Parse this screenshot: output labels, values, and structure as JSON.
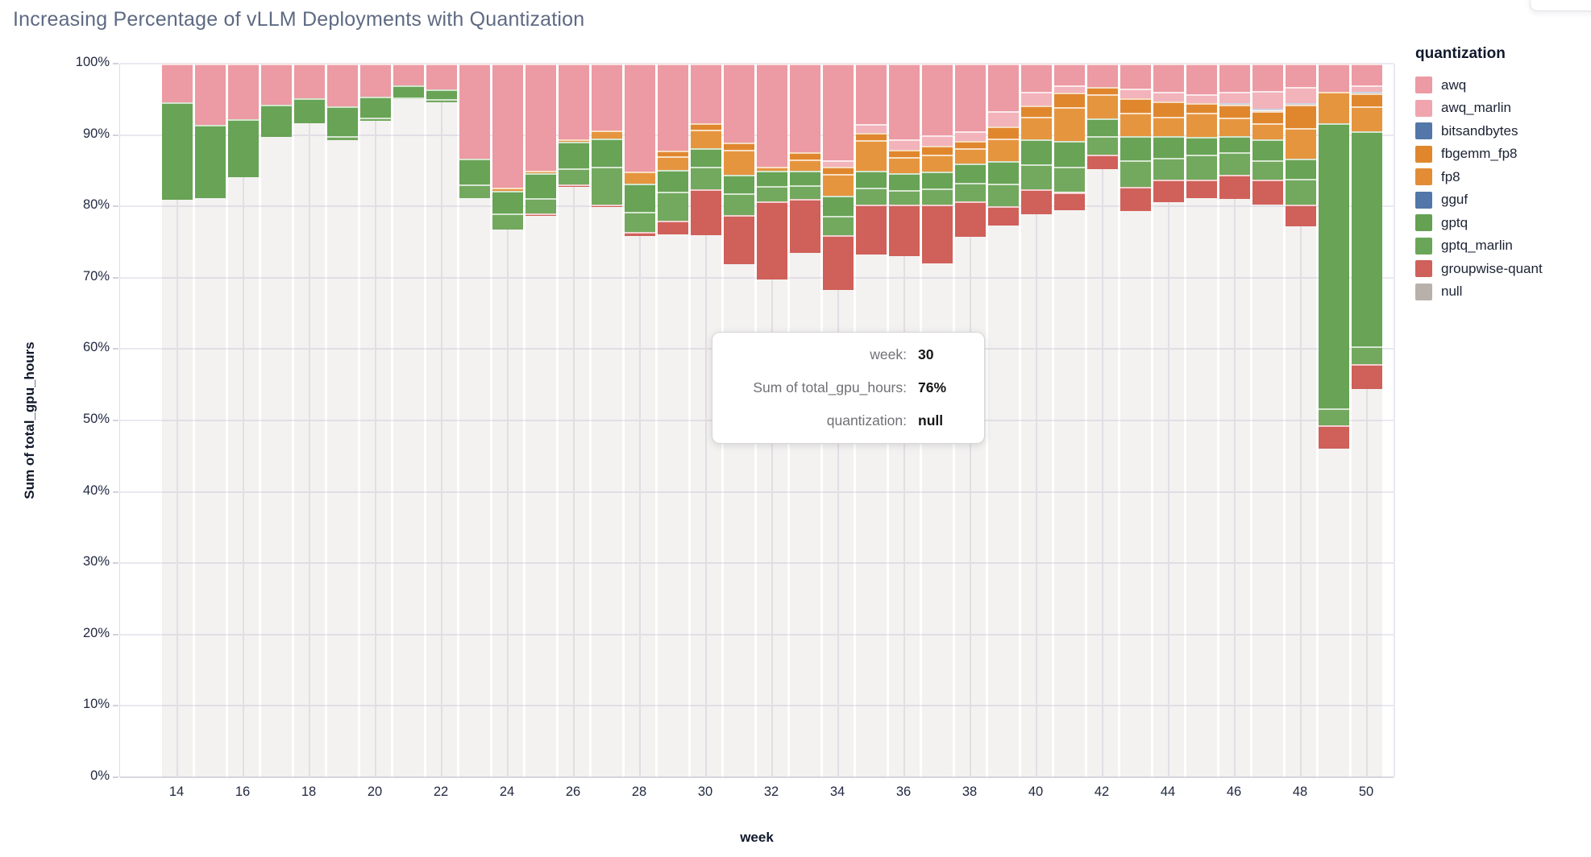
{
  "header": {
    "title": "Increasing Percentage of vLLM Deployments with Quantization"
  },
  "chart_data": {
    "type": "bar",
    "stacked": true,
    "normalized_percent": true,
    "title": "Increasing Percentage of vLLM Deployments with Quantization",
    "xlabel": "week",
    "ylabel": "Sum of total_gpu_hours",
    "legend_title": "quantization",
    "grid": true,
    "legend_position": "right",
    "ylim": [
      0,
      100
    ],
    "y_ticks": [
      0,
      10,
      20,
      30,
      40,
      50,
      60,
      70,
      80,
      90,
      100
    ],
    "y_tick_suffix": "%",
    "x_tick_labels": [
      14,
      16,
      18,
      20,
      22,
      24,
      26,
      28,
      30,
      32,
      34,
      36,
      38,
      40,
      42,
      44,
      46,
      48,
      50
    ],
    "categories": [
      14,
      15,
      16,
      17,
      18,
      19,
      20,
      21,
      22,
      23,
      24,
      25,
      26,
      27,
      28,
      29,
      30,
      31,
      32,
      33,
      34,
      35,
      36,
      37,
      38,
      39,
      40,
      41,
      42,
      43,
      44,
      45,
      46,
      47,
      48,
      49,
      50
    ],
    "series": [
      {
        "name": "awq",
        "color": "#ec9aa3",
        "values": [
          5.4,
          8.6,
          7.8,
          5.8,
          4.8,
          6.0,
          4.6,
          3.1,
          3.6,
          13.3,
          17.4,
          15.0,
          10.6,
          9.4,
          15.1,
          12.2,
          8.4,
          11.1,
          14.4,
          12.4,
          13.5,
          8.5,
          10.6,
          10.0,
          9.5,
          6.7,
          4.0,
          3.0,
          3.3,
          3.5,
          4.0,
          4.3,
          4.0,
          3.8,
          3.3,
          3.9,
          3.0
        ]
      },
      {
        "name": "awq_marlin",
        "color": "#f2b3bb",
        "values": [
          0,
          0,
          0,
          0,
          0,
          0,
          0,
          0,
          0,
          0,
          0,
          0,
          0,
          0,
          0,
          0,
          0,
          0,
          0,
          0,
          1.0,
          1.2,
          1.5,
          1.5,
          1.3,
          2.1,
          1.9,
          1.1,
          0,
          1.3,
          1.3,
          1.2,
          1.5,
          2.5,
          2.2,
          0,
          0.9
        ]
      },
      {
        "name": "bitsandbytes",
        "color": "#5277a8",
        "values": [
          0,
          0,
          0,
          0,
          0,
          0,
          0,
          0,
          0,
          0,
          0,
          0,
          0,
          0,
          0,
          0,
          0,
          0,
          0,
          0,
          0,
          0,
          0,
          0,
          0,
          0,
          0,
          0,
          0,
          0,
          0,
          0,
          0.3,
          0.3,
          0.3,
          0,
          0.3
        ]
      },
      {
        "name": "fbgemm_fp8",
        "color": "#e0872e",
        "values": [
          0,
          0,
          0,
          0,
          0,
          0,
          0,
          0,
          0,
          0,
          0,
          0,
          0,
          0,
          0,
          0.8,
          0.9,
          1.0,
          0,
          1.0,
          1.0,
          1.0,
          1.0,
          1.2,
          1.0,
          1.7,
          1.5,
          2.0,
          1.0,
          2.1,
          2.2,
          1.4,
          1.8,
          1.7,
          3.2,
          0,
          1.8
        ]
      },
      {
        "name": "fp8",
        "color": "#e6953f",
        "values": [
          0,
          0,
          0,
          0,
          0,
          0,
          0,
          0,
          0,
          0,
          0.4,
          0.4,
          0.4,
          1.1,
          1.7,
          1.9,
          2.5,
          3.5,
          0.6,
          1.6,
          3.0,
          4.3,
          2.2,
          2.4,
          2.2,
          3.2,
          3.2,
          4.7,
          3.4,
          3.2,
          2.7,
          3.4,
          2.6,
          2.3,
          4.3,
          4.4,
          3.5
        ]
      },
      {
        "name": "gguf",
        "color": "#5277a8",
        "values": [
          0,
          0,
          0,
          0,
          0,
          0,
          0,
          0,
          0,
          0,
          0,
          0,
          0,
          0,
          0,
          0,
          0,
          0,
          0,
          0,
          0,
          0,
          0,
          0,
          0,
          0,
          0,
          0,
          0,
          0,
          0,
          0,
          0,
          0,
          0,
          0,
          0
        ]
      },
      {
        "name": "gptq",
        "color": "#68a356",
        "values": [
          13.7,
          10.3,
          8.1,
          4.5,
          3.6,
          4.2,
          3.0,
          1.6,
          1.4,
          3.6,
          3.2,
          3.4,
          3.7,
          3.9,
          4.0,
          3.1,
          2.7,
          2.6,
          2.1,
          2.0,
          2.8,
          2.4,
          2.4,
          2.4,
          2.7,
          3.1,
          3.5,
          3.6,
          2.5,
          3.4,
          3.0,
          2.5,
          2.2,
          2.9,
          2.8,
          40.0,
          30.1
        ]
      },
      {
        "name": "gptq_marlin",
        "color": "#72a95e",
        "values": [
          0,
          0,
          0,
          0,
          0,
          0.5,
          0.4,
          0.3,
          0.4,
          2.0,
          2.3,
          2.2,
          2.2,
          5.4,
          2.8,
          4.0,
          3.1,
          3.0,
          2.2,
          2.0,
          2.7,
          2.3,
          2.1,
          2.3,
          2.6,
          3.2,
          3.5,
          3.6,
          2.6,
          3.8,
          3.0,
          3.5,
          3.2,
          2.8,
          3.7,
          2.4,
          2.5
        ]
      },
      {
        "name": "groupwise-quant",
        "color": "#d0605a",
        "values": [
          0,
          0,
          0,
          0,
          0,
          0,
          0,
          0,
          0,
          0,
          0,
          0.3,
          0.4,
          0.3,
          0.5,
          1.9,
          6.4,
          6.9,
          11.0,
          7.5,
          7.7,
          7.1,
          7.2,
          8.2,
          5.0,
          2.7,
          3.5,
          2.5,
          2.0,
          3.3,
          3.2,
          2.6,
          3.4,
          3.4,
          3.0,
          3.2,
          3.5
        ]
      },
      {
        "name": "null",
        "color": "rgba(183,174,166,0.16)",
        "values": [
          80.9,
          81.1,
          84.1,
          89.7,
          91.6,
          89.3,
          92.0,
          95.0,
          94.6,
          81.1,
          76.7,
          78.7,
          82.7,
          79.9,
          75.9,
          76.1,
          76.0,
          71.9,
          69.7,
          73.5,
          68.3,
          73.2,
          73.0,
          72.0,
          75.7,
          77.3,
          78.9,
          79.5,
          85.2,
          79.4,
          80.6,
          81.1,
          81.0,
          80.3,
          77.2,
          46.1,
          54.4
        ]
      }
    ]
  },
  "legend": {
    "title": "quantization",
    "items": [
      {
        "label": "awq",
        "color": "#ec9aa3"
      },
      {
        "label": "awq_marlin",
        "color": "#f0a5ae"
      },
      {
        "label": "bitsandbytes",
        "color": "#5277a8"
      },
      {
        "label": "fbgemm_fp8",
        "color": "#e0872e"
      },
      {
        "label": "fp8",
        "color": "#e28d35"
      },
      {
        "label": "gguf",
        "color": "#5277a8"
      },
      {
        "label": "gptq",
        "color": "#65a152"
      },
      {
        "label": "gptq_marlin",
        "color": "#6aa65a"
      },
      {
        "label": "groupwise-quant",
        "color": "#d0605a"
      },
      {
        "label": "null",
        "color": "#b8b1ab"
      }
    ]
  },
  "tooltip": {
    "rows": [
      {
        "label": "week:",
        "value": "30"
      },
      {
        "label": "Sum of total_gpu_hours:",
        "value": "76%"
      },
      {
        "label": "quantization:",
        "value": "null"
      }
    ]
  }
}
